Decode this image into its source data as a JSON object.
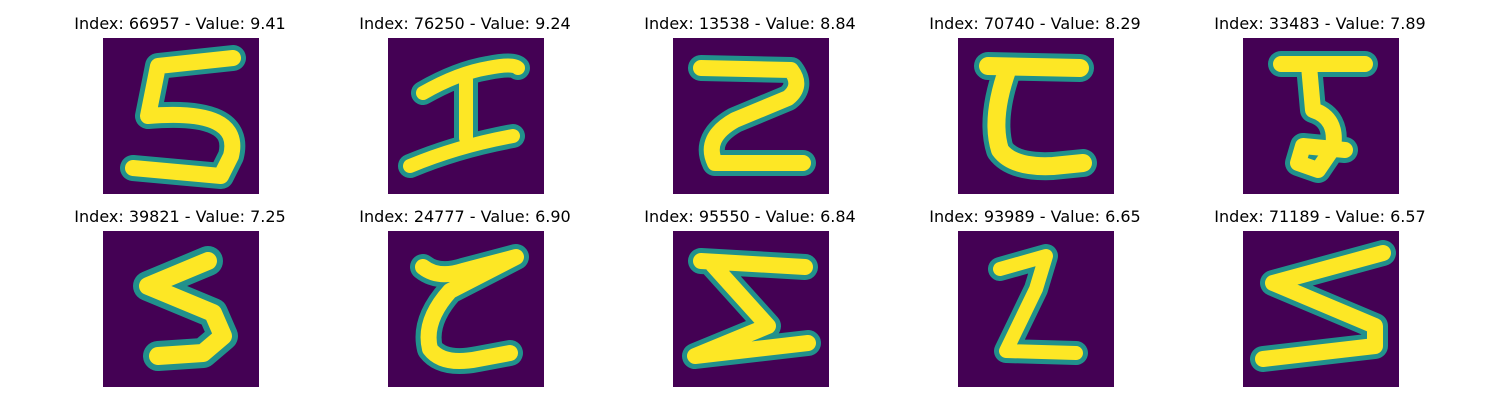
{
  "colors": {
    "background": "#440154",
    "mid": "#21918c",
    "ink": "#fde725",
    "glow": "#5ec962"
  },
  "images": [
    {
      "title": "Index: 66957 - Value: 9.41",
      "glyph": "digit-5-curved"
    },
    {
      "title": "Index: 76250 - Value: 9.24",
      "glyph": "digit-i-shape"
    },
    {
      "title": "Index: 13538 - Value: 8.84",
      "glyph": "digit-2-loop"
    },
    {
      "title": "Index: 70740 - Value: 8.29",
      "glyph": "digit-c-base"
    },
    {
      "title": "Index: 33483 - Value: 7.89",
      "glyph": "digit-5-narrow"
    },
    {
      "title": "Index: 39821 - Value: 7.25",
      "glyph": "digit-5-zigzag"
    },
    {
      "title": "Index: 24777 - Value: 6.90",
      "glyph": "digit-z-loop"
    },
    {
      "title": "Index: 95550 - Value: 6.84",
      "glyph": "digit-sigma-wide"
    },
    {
      "title": "Index: 93989 - Value: 6.65",
      "glyph": "digit-z-narrow"
    },
    {
      "title": "Index: 71189 - Value: 6.57",
      "glyph": "digit-sigma-slant"
    }
  ]
}
